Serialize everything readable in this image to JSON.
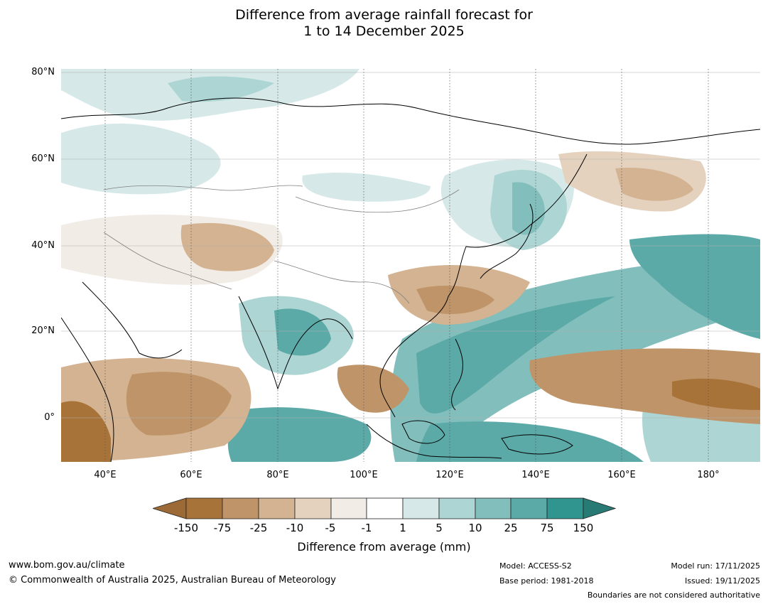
{
  "header": {
    "title_line1": "Difference from average rainfall forecast for",
    "title_line2": "1 to 14 December 2025"
  },
  "map": {
    "lat_labels": [
      "80°N",
      "60°N",
      "40°N",
      "20°N",
      "0°"
    ],
    "lon_labels": [
      "40°E",
      "60°E",
      "80°E",
      "100°E",
      "120°E",
      "140°E",
      "160°E",
      "180°"
    ],
    "palette": {
      "dry_extreme": "#9c6a37",
      "dry_150": "#a87338",
      "dry_75": "#bf9468",
      "dry_25": "#d3b391",
      "dry_10": "#e4d2bf",
      "dry_5": "#f2ece6",
      "neutral": "#ffffff",
      "wet_1": "#d6e9e8",
      "wet_5": "#acd5d3",
      "wet_10": "#82bebc",
      "wet_25": "#5caaa8",
      "wet_75": "#30958f",
      "wet_extreme": "#277b74",
      "coast": "#000000",
      "border": "#808080",
      "grid": "#b0b0b0"
    }
  },
  "colorbar": {
    "ticks": [
      "-150",
      "-75",
      "-25",
      "-10",
      "-5",
      "-1",
      "1",
      "5",
      "10",
      "25",
      "75",
      "150"
    ],
    "label": "Difference from average (mm)"
  },
  "footer": {
    "website": "www.bom.gov.au/climate",
    "copyright": "© Commonwealth of Australia 2025, Australian Bureau of Meteorology",
    "model": "Model: ACCESS-S2",
    "base_period": "Base period: 1981-2018",
    "model_run": "Model run: 17/11/2025",
    "issued": "Issued: 19/11/2025",
    "disclaimer": "Boundaries are not considered authoritative"
  }
}
